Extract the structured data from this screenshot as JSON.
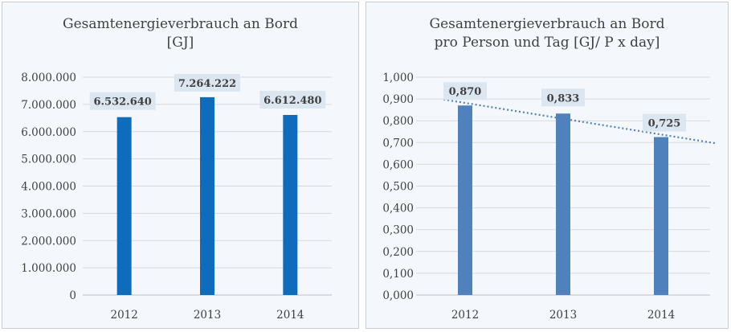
{
  "colors": {
    "bar_left": "#0f6cbd",
    "bar_right": "#4f81bd",
    "grid": "#d9d9d9",
    "label_bg": "#dce6f1",
    "trendline": "#4f81bd"
  },
  "chart_data": [
    {
      "type": "bar",
      "title_lines": [
        "Gesamtenergieverbrauch an Bord",
        "[GJ]"
      ],
      "categories": [
        "2012",
        "2013",
        "2014"
      ],
      "values": [
        6532640,
        7264222,
        6612480
      ],
      "value_labels": [
        "6.532.640",
        "7.264.222",
        "6.612.480"
      ],
      "yticks": [
        "0",
        "1.000.000",
        "2.000.000",
        "3.000.000",
        "4.000.000",
        "5.000.000",
        "6.000.000",
        "7.000.000",
        "8.000.000"
      ],
      "ylim": [
        0,
        8000000
      ],
      "ystep": 1000000,
      "grid": true,
      "legend": "none"
    },
    {
      "type": "bar",
      "title_lines": [
        "Gesamtenergieverbrauch an Bord",
        "pro Person und Tag [GJ/ P x day]"
      ],
      "categories": [
        "2012",
        "2013",
        "2014"
      ],
      "values": [
        0.87,
        0.833,
        0.725
      ],
      "value_labels": [
        "0,870",
        "0,833",
        "0,725"
      ],
      "yticks": [
        "0,000",
        "0,100",
        "0,200",
        "0,300",
        "0,400",
        "0,500",
        "0,600",
        "0,700",
        "0,800",
        "0,900",
        "1,000"
      ],
      "ylim": [
        0,
        1.0
      ],
      "ystep": 0.1,
      "grid": true,
      "legend": "none",
      "trendline": "linear, dotted"
    }
  ]
}
